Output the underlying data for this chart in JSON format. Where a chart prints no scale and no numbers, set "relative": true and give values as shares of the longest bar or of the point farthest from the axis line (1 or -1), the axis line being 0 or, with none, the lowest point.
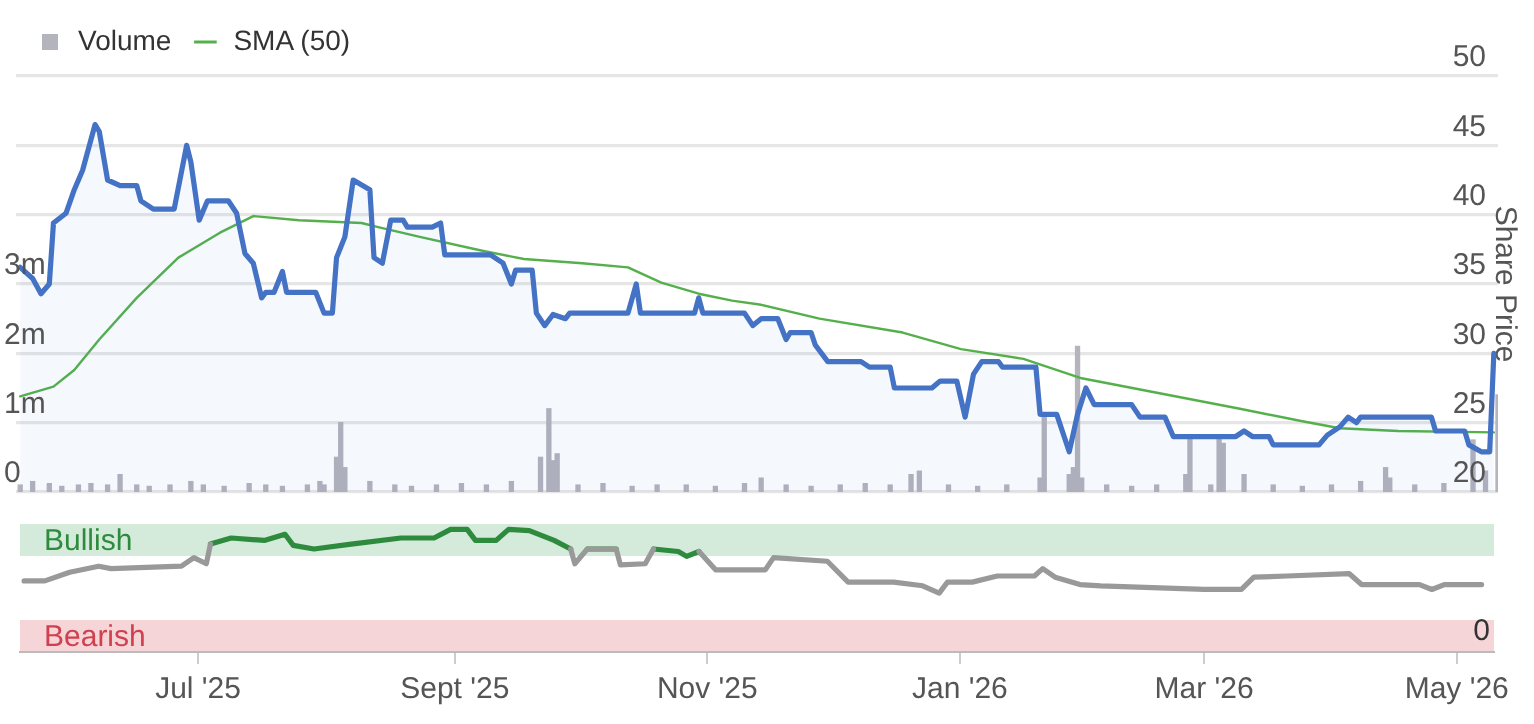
{
  "chart_data": [
    {
      "type": "line",
      "xlim": [
        "2025-05-19",
        "2026-05-10"
      ],
      "ylim": [
        0,
        6000000
      ],
      "yticks": [
        0,
        {
          "value": 1000000,
          "label": "1m"
        },
        {
          "value": 2000000,
          "label": "2m"
        },
        {
          "value": 3000000,
          "label": "3m"
        }
      ],
      "y2lim": [
        20,
        50
      ],
      "y2ticks": [
        20,
        25,
        30,
        35,
        40,
        45,
        50
      ],
      "y2label": "Share Price",
      "grid": "y",
      "legend": "top left",
      "tick_labels": "y",
      "marker": "none",
      "line_style": "solid",
      "series": [
        {
          "type": "bar",
          "name": "Volume",
          "color": "#b4b4bc",
          "axis": "y",
          "x": [
            "2025-05-20",
            "2025-05-23",
            "2025-05-27",
            "2025-05-30",
            "2025-06-03",
            "2025-06-06",
            "2025-06-10",
            "2025-06-13",
            "2025-06-17",
            "2025-06-20",
            "2025-06-25",
            "2025-06-30",
            "2025-07-03",
            "2025-07-08",
            "2025-07-14",
            "2025-07-18",
            "2025-07-22",
            "2025-07-28",
            "2025-07-31",
            "2025-08-01",
            "2025-08-04",
            "2025-08-05",
            "2025-08-06",
            "2025-08-12",
            "2025-08-18",
            "2025-08-22",
            "2025-08-28",
            "2025-09-03",
            "2025-09-09",
            "2025-09-15",
            "2025-09-22",
            "2025-09-24",
            "2025-09-25",
            "2025-09-26",
            "2025-10-01",
            "2025-10-07",
            "2025-10-14",
            "2025-10-20",
            "2025-10-27",
            "2025-11-03",
            "2025-11-10",
            "2025-11-14",
            "2025-11-20",
            "2025-11-26",
            "2025-12-03",
            "2025-12-09",
            "2025-12-15",
            "2025-12-20",
            "2025-12-22",
            "2025-12-29",
            "2026-01-05",
            "2026-01-12",
            "2026-01-20",
            "2026-01-21",
            "2026-01-27",
            "2026-01-28",
            "2026-01-29",
            "2026-01-30",
            "2026-02-05",
            "2026-02-11",
            "2026-02-17",
            "2026-02-24",
            "2026-02-25",
            "2026-03-02",
            "2026-03-04",
            "2026-03-05",
            "2026-03-10",
            "2026-03-17",
            "2026-03-24",
            "2026-03-31",
            "2026-04-07",
            "2026-04-13",
            "2026-04-14",
            "2026-04-20",
            "2026-04-27",
            "2026-05-04",
            "2026-05-07",
            "2026-05-10"
          ],
          "values": [
            100000,
            150000,
            120000,
            80000,
            100000,
            120000,
            100000,
            250000,
            100000,
            80000,
            100000,
            150000,
            100000,
            80000,
            120000,
            100000,
            80000,
            100000,
            150000,
            100000,
            500000,
            1000000,
            350000,
            150000,
            100000,
            80000,
            100000,
            120000,
            100000,
            150000,
            500000,
            1200000,
            450000,
            550000,
            100000,
            120000,
            80000,
            100000,
            100000,
            80000,
            120000,
            200000,
            100000,
            80000,
            100000,
            120000,
            100000,
            250000,
            300000,
            100000,
            80000,
            100000,
            200000,
            1100000,
            250000,
            350000,
            2100000,
            200000,
            100000,
            80000,
            100000,
            250000,
            800000,
            100000,
            800000,
            700000,
            250000,
            100000,
            80000,
            100000,
            150000,
            350000,
            200000,
            100000,
            120000,
            750000,
            300000,
            1400000
          ]
        },
        {
          "type": "area",
          "color": "#4472c4",
          "axis": "y2",
          "x": [
            "2025-05-20",
            "2025-05-23",
            "2025-05-25",
            "2025-05-27",
            "2025-05-28",
            "2025-05-31",
            "2025-06-02",
            "2025-06-04",
            "2025-06-07",
            "2025-06-08",
            "2025-06-10",
            "2025-06-13",
            "2025-06-17",
            "2025-06-18",
            "2025-06-21",
            "2025-06-26",
            "2025-06-29",
            "2025-06-30",
            "2025-07-02",
            "2025-07-04",
            "2025-07-09",
            "2025-07-11",
            "2025-07-13",
            "2025-07-15",
            "2025-07-17",
            "2025-07-18",
            "2025-07-20",
            "2025-07-22",
            "2025-07-23",
            "2025-07-30",
            "2025-08-01",
            "2025-08-03",
            "2025-08-04",
            "2025-08-06",
            "2025-08-08",
            "2025-08-12",
            "2025-08-13",
            "2025-08-15",
            "2025-08-17",
            "2025-08-20",
            "2025-08-21",
            "2025-08-27",
            "2025-08-29",
            "2025-08-30",
            "2025-09-10",
            "2025-09-13",
            "2025-09-15",
            "2025-09-16",
            "2025-09-20",
            "2025-09-21",
            "2025-09-23",
            "2025-09-25",
            "2025-09-28",
            "2025-09-29",
            "2025-10-13",
            "2025-10-15",
            "2025-10-16",
            "2025-10-29",
            "2025-10-30",
            "2025-10-31",
            "2025-11-10",
            "2025-11-12",
            "2025-11-14",
            "2025-11-18",
            "2025-11-20",
            "2025-11-21",
            "2025-11-26",
            "2025-11-27",
            "2025-11-30",
            "2025-12-08",
            "2025-12-10",
            "2025-12-15",
            "2025-12-16",
            "2025-12-25",
            "2025-12-27",
            "2025-12-31",
            "2026-01-02",
            "2026-01-04",
            "2026-01-06",
            "2026-01-10",
            "2026-01-11",
            "2026-01-19",
            "2026-01-20",
            "2026-01-24",
            "2026-01-27",
            "2026-01-29",
            "2026-01-31",
            "2026-02-02",
            "2026-02-11",
            "2026-02-13",
            "2026-02-19",
            "2026-02-21",
            "2026-03-08",
            "2026-03-10",
            "2026-03-12",
            "2026-03-16",
            "2026-03-17",
            "2026-03-28",
            "2026-03-30",
            "2026-04-02",
            "2026-04-04",
            "2026-04-06",
            "2026-04-07",
            "2026-04-24",
            "2026-04-25",
            "2026-05-02",
            "2026-05-03",
            "2026-05-06",
            "2026-05-08",
            "2026-05-09"
          ],
          "values": [
            36.2,
            35.4,
            34.3,
            35,
            39.4,
            40.1,
            41.8,
            43.2,
            46.5,
            46,
            42.5,
            42.1,
            42.1,
            41,
            40.4,
            40.4,
            45,
            43.8,
            39.6,
            41,
            41,
            40.1,
            37.2,
            36.5,
            34,
            34.4,
            34.4,
            35.9,
            34.4,
            34.4,
            32.9,
            32.9,
            36.9,
            38.4,
            42.5,
            41.8,
            36.9,
            36.5,
            39.6,
            39.6,
            39.1,
            39.1,
            39.4,
            37.1,
            37.1,
            36.5,
            35,
            36,
            36,
            32.9,
            32,
            32.8,
            32.5,
            32.9,
            32.9,
            35,
            32.9,
            32.9,
            34,
            32.9,
            32.9,
            32,
            32.5,
            32.5,
            31,
            31.5,
            31.5,
            30.6,
            29.4,
            29.4,
            29,
            29,
            27.5,
            27.5,
            28,
            28,
            25.4,
            28.5,
            29.4,
            29.4,
            29,
            29,
            25.6,
            25.6,
            22.9,
            25.6,
            27.5,
            26.3,
            26.3,
            25.4,
            25.4,
            24,
            24,
            24.4,
            24,
            24,
            23.4,
            23.4,
            24.1,
            24.7,
            25.4,
            25,
            25.4,
            25.4,
            24.4,
            24.4,
            23.4,
            22.9,
            22.9,
            30
          ]
        },
        {
          "type": "line",
          "name": "SMA (50)",
          "color": "#55b04c",
          "axis": "y2",
          "x": [
            "2025-05-20",
            "2025-05-28",
            "2025-06-02",
            "2025-06-08",
            "2025-06-17",
            "2025-06-27",
            "2025-07-07",
            "2025-07-15",
            "2025-07-26",
            "2025-08-10",
            "2025-08-14",
            "2025-08-24",
            "2025-09-08",
            "2025-09-18",
            "2025-10-02",
            "2025-10-13",
            "2025-10-21",
            "2025-10-30",
            "2025-11-07",
            "2025-11-14",
            "2025-11-28",
            "2025-12-18",
            "2026-01-01",
            "2026-01-16",
            "2026-01-30",
            "2026-02-18",
            "2026-03-09",
            "2026-03-24",
            "2026-04-02",
            "2026-04-16",
            "2026-05-09"
          ],
          "values": [
            26.9,
            27.6,
            28.8,
            31,
            34,
            36.9,
            38.7,
            39.9,
            39.6,
            39.4,
            39.1,
            38.4,
            37.4,
            36.8,
            36.5,
            36.2,
            35.1,
            34.3,
            33.8,
            33.5,
            32.5,
            31.5,
            30.3,
            29.6,
            28.2,
            27.1,
            26,
            25.1,
            24.6,
            24.4,
            24.3
          ]
        }
      ]
    },
    {
      "type": "line",
      "relative": true,
      "annotations": [
        "Bullish",
        "Bearish",
        "0"
      ],
      "xlim": [
        "2025-05-19",
        "2026-05-10"
      ],
      "xticks": [
        {
          "value": "2025-07-01",
          "label": "Jul '25"
        },
        {
          "value": "2025-09-01",
          "label": "Sept '25"
        },
        {
          "value": "2025-11-01",
          "label": "Nov '25"
        },
        {
          "value": "2026-01-01",
          "label": "Jan '26"
        },
        {
          "value": "2026-03-01",
          "label": "Mar '26"
        },
        {
          "value": "2026-05-01",
          "label": "May '26"
        }
      ],
      "marker": "none",
      "line_style": "solid",
      "x": [
        "2025-05-20",
        "2025-05-25",
        "2025-05-31",
        "2025-06-07",
        "2025-06-10",
        "2025-06-27",
        "2025-06-30",
        "2025-07-03",
        "2025-07-04",
        "2025-07-09",
        "2025-07-17",
        "2025-07-22",
        "2025-07-24",
        "2025-07-29",
        "2025-08-07",
        "2025-08-19",
        "2025-08-27",
        "2025-08-31",
        "2025-09-04",
        "2025-09-06",
        "2025-09-11",
        "2025-09-14",
        "2025-09-19",
        "2025-09-25",
        "2025-09-29",
        "2025-09-30",
        "2025-10-03",
        "2025-10-10",
        "2025-10-11",
        "2025-10-17",
        "2025-10-19",
        "2025-10-25",
        "2025-10-27",
        "2025-10-30",
        "2025-11-03",
        "2025-11-15",
        "2025-11-17",
        "2025-11-30",
        "2025-12-05",
        "2025-12-16",
        "2025-12-23",
        "2025-12-27",
        "2025-12-29",
        "2026-01-04",
        "2026-01-10",
        "2026-01-19",
        "2026-01-21",
        "2026-01-24",
        "2026-01-30",
        "2026-02-04",
        "2026-03-01",
        "2026-03-10",
        "2026-03-13",
        "2026-03-21",
        "2026-04-05",
        "2026-04-08",
        "2026-04-22",
        "2026-04-25",
        "2026-04-28",
        "2026-05-07"
      ],
      "series": [
        {
          "color": "#999999",
          "values": [
            0.58,
            0.58,
            0.65,
            0.7,
            0.68,
            0.7,
            0.77,
            0.72,
            0.88,
            null,
            null,
            null,
            null,
            null,
            null,
            null,
            null,
            null,
            null,
            null,
            null,
            null,
            null,
            null,
            0.84,
            0.72,
            0.84,
            0.84,
            0.71,
            0.72,
            0.84,
            null,
            null,
            0.82,
            0.67,
            0.67,
            0.77,
            0.74,
            0.57,
            0.57,
            0.54,
            0.48,
            0.57,
            0.57,
            0.62,
            0.62,
            0.68,
            0.61,
            0.55,
            0.54,
            0.51,
            0.51,
            0.61,
            0.62,
            0.64,
            0.55,
            0.55,
            0.51,
            0.55,
            0.55
          ]
        },
        {
          "color": "#2e8b3e",
          "values": [
            null,
            null,
            null,
            null,
            null,
            null,
            null,
            null,
            0.88,
            0.93,
            0.91,
            0.96,
            0.87,
            0.84,
            0.88,
            0.93,
            0.93,
            1,
            1,
            0.91,
            0.91,
            1,
            0.99,
            0.91,
            0.84,
            null,
            0.84,
            0.84,
            null,
            null,
            0.84,
            0.82,
            0.78,
            0.82,
            null,
            null,
            null,
            null,
            null,
            null,
            null,
            null,
            null,
            null,
            null,
            null,
            null,
            null,
            null,
            null,
            null,
            null,
            null,
            null,
            null,
            null,
            null,
            null,
            null,
            null
          ]
        }
      ]
    }
  ]
}
